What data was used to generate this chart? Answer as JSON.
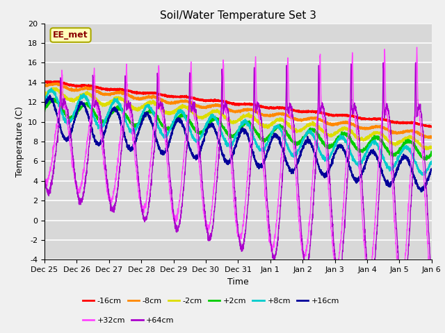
{
  "title": "Soil/Water Temperature Set 3",
  "xlabel": "Time",
  "ylabel": "Temperature (C)",
  "ylim": [
    -4,
    20
  ],
  "xlim": [
    0,
    288
  ],
  "annotation": "EE_met",
  "plot_bg_color": "#d8d8d8",
  "series": [
    {
      "label": "-16cm",
      "color": "#ff0000"
    },
    {
      "label": "-8cm",
      "color": "#ff8800"
    },
    {
      "label": "-2cm",
      "color": "#dddd00"
    },
    {
      "label": "+2cm",
      "color": "#00cc00"
    },
    {
      "label": "+8cm",
      "color": "#00cccc"
    },
    {
      "label": "+16cm",
      "color": "#000099"
    },
    {
      "label": "+32cm",
      "color": "#ff44ff"
    },
    {
      "label": "+64cm",
      "color": "#aa00cc"
    }
  ],
  "xtick_labels": [
    "Dec 25",
    "Dec 26",
    "Dec 27",
    "Dec 28",
    "Dec 29",
    "Dec 30",
    "Dec 31",
    "Jan 1",
    "Jan 2",
    "Jan 3",
    "Jan 4",
    "Jan 5",
    "Jan 6"
  ],
  "xtick_positions": [
    0,
    24,
    48,
    72,
    96,
    120,
    144,
    168,
    192,
    216,
    240,
    264,
    288
  ],
  "ytick_positions": [
    -4,
    -2,
    0,
    2,
    4,
    6,
    8,
    10,
    12,
    14,
    16,
    18,
    20
  ]
}
